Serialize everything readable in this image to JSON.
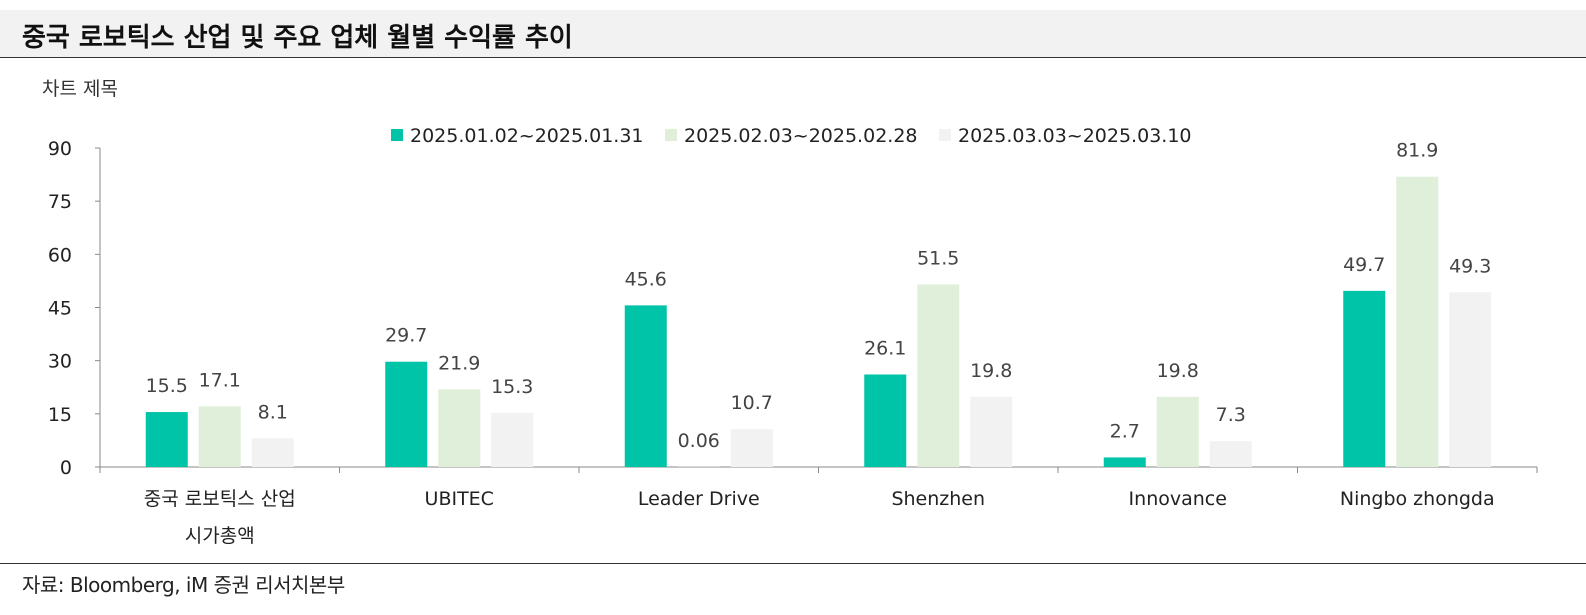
{
  "header": {
    "title": "중국 로보틱스 산업 및 주요 업체 월별 수익률 추이"
  },
  "chart_data": {
    "type": "bar",
    "title": "차트 제목",
    "categories": [
      [
        "중국 로보틱스 산업",
        "시가총액"
      ],
      [
        "UBITEC"
      ],
      [
        "Leader Drive"
      ],
      [
        "Shenzhen"
      ],
      [
        "Innovance"
      ],
      [
        "Ningbo zhongda"
      ]
    ],
    "series": [
      {
        "name": "2025.01.02~2025.01.31",
        "color": "#00c4a7",
        "values": [
          15.5,
          29.7,
          45.6,
          26.1,
          2.7,
          49.7
        ],
        "labels": [
          "15.5",
          "29.7",
          "45.6",
          "26.1",
          "2.7",
          "49.7"
        ]
      },
      {
        "name": "2025.02.03~2025.02.28",
        "color": "#e0efd9",
        "values": [
          17.1,
          21.9,
          0.06,
          51.5,
          19.8,
          81.9
        ],
        "labels": [
          "17.1",
          "21.9",
          "0.06",
          "51.5",
          "19.8",
          "81.9"
        ]
      },
      {
        "name": "2025.03.03~2025.03.10",
        "color": "#f2f2f2",
        "values": [
          8.1,
          15.3,
          10.7,
          19.8,
          7.3,
          49.3
        ],
        "labels": [
          "8.1",
          "15.3",
          "10.7",
          "19.8",
          "7.3",
          "49.3"
        ]
      }
    ],
    "ylim": [
      0,
      90
    ],
    "yticks": [
      0,
      15,
      30,
      45,
      60,
      75,
      90
    ],
    "legend_position": "top-center",
    "grid": false
  },
  "source": "자료: Bloomberg, iM 증권 리서치본부"
}
